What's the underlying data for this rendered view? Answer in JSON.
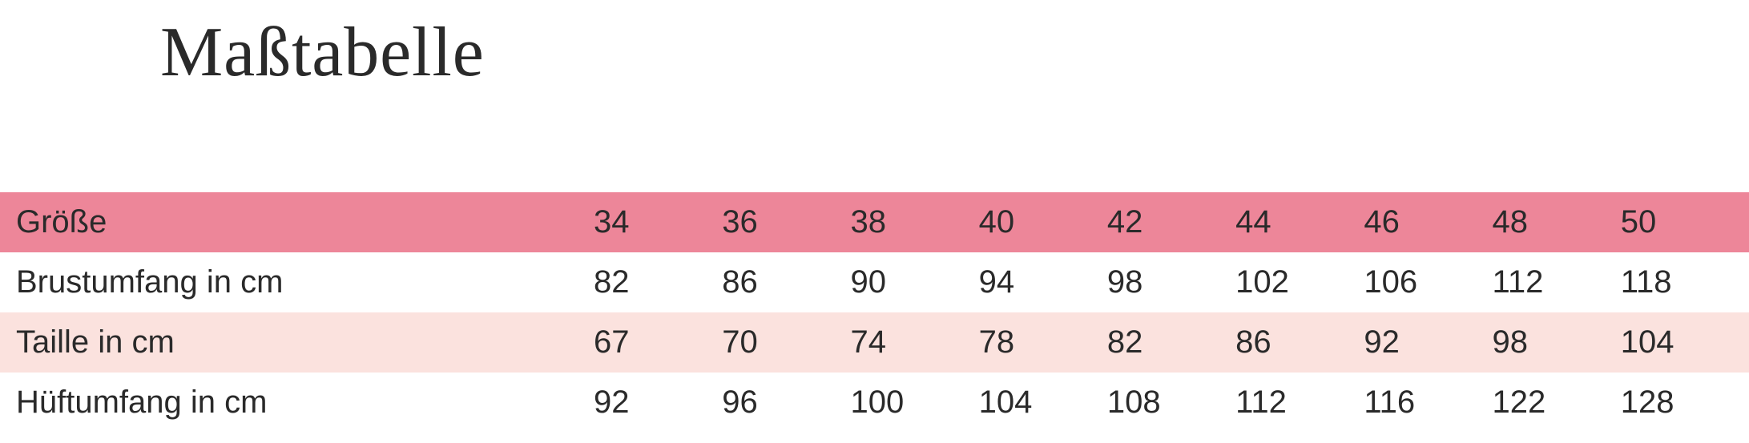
{
  "title": "Maßtabelle",
  "table": {
    "columns_label": "Größe",
    "columns": [
      "34",
      "36",
      "38",
      "40",
      "42",
      "44",
      "46",
      "48",
      "50"
    ],
    "rows": [
      {
        "label": "Brustumfang in cm",
        "values": [
          "82",
          "86",
          "90",
          "94",
          "98",
          "102",
          "106",
          "112",
          "118"
        ]
      },
      {
        "label": "Taille in cm",
        "values": [
          "67",
          "70",
          "74",
          "78",
          "82",
          "86",
          "92",
          "98",
          "104"
        ]
      },
      {
        "label": "Hüftumfang in cm",
        "values": [
          "92",
          "96",
          "100",
          "104",
          "108",
          "112",
          "116",
          "122",
          "128"
        ]
      }
    ],
    "colors": {
      "header_bg": "#ed8699",
      "stripe_bg": "#fbe2de",
      "plain_bg": "#ffffff",
      "text": "#2a2a2a"
    },
    "font": {
      "title_family": "script",
      "title_size_pt": 66,
      "body_size_pt": 30
    }
  }
}
